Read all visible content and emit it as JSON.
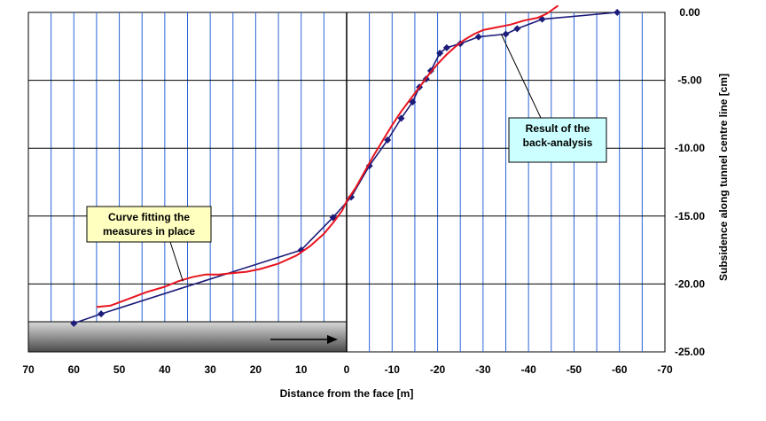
{
  "chart_data": {
    "type": "line",
    "title": "",
    "xlabel": "Distance from the face [m]",
    "ylabel": "Subsidence along tunnel centre line [cm]",
    "xlim": [
      70,
      -70
    ],
    "ylim": [
      -25,
      0
    ],
    "x_ticks": [
      70,
      60,
      50,
      40,
      30,
      20,
      10,
      0,
      -10,
      -20,
      -30,
      -40,
      -50,
      -60,
      -70
    ],
    "y_ticks": [
      0,
      -5,
      -10,
      -15,
      -20,
      -25
    ],
    "x_tick_labels": [
      "70",
      "60",
      "50",
      "40",
      "30",
      "20",
      "10",
      "0",
      "-10",
      "-20",
      "-30",
      "-40",
      "-50",
      "-60",
      "-70"
    ],
    "y_tick_labels": [
      "0.00",
      "-5.00",
      "-10.00",
      "-15.00",
      "-20.00",
      "-25.00"
    ],
    "grid": true,
    "series": [
      {
        "name": "Result of the back-analysis",
        "color": "#1c1c7a",
        "marker": "diamond",
        "x": [
          60,
          54,
          10,
          3,
          -1,
          -5,
          -9,
          -12,
          -14.5,
          -16,
          -17.5,
          -18.5,
          -20.5,
          -22,
          -25,
          -29,
          -35,
          -37.5,
          -43,
          -59.5
        ],
        "y": [
          -22.9,
          -22.2,
          -17.5,
          -15.1,
          -13.6,
          -11.3,
          -9.4,
          -7.8,
          -6.6,
          -5.5,
          -4.9,
          -4.3,
          -3.0,
          -2.6,
          -2.3,
          -1.8,
          -1.6,
          -1.2,
          -0.5,
          0.0
        ]
      },
      {
        "name": "Curve fitting the measures in place",
        "color": "#e8141e",
        "marker": "none",
        "x": [
          55,
          52,
          48,
          44,
          40,
          37,
          34,
          31,
          28,
          25,
          22,
          19,
          15,
          11,
          8,
          5,
          3,
          1,
          0,
          -2,
          -4,
          -6,
          -8,
          -10,
          -12,
          -14,
          -16,
          -18,
          -20,
          -22,
          -24,
          -26,
          -28,
          -30,
          -33,
          -36,
          -39,
          -42,
          -44,
          -46.5
        ],
        "y": [
          -21.7,
          -21.6,
          -21.1,
          -20.6,
          -20.2,
          -19.8,
          -19.5,
          -19.3,
          -19.3,
          -19.2,
          -19.1,
          -18.9,
          -18.5,
          -17.9,
          -17.2,
          -16.3,
          -15.5,
          -14.6,
          -13.9,
          -12.9,
          -11.7,
          -10.5,
          -9.4,
          -8.3,
          -7.3,
          -6.4,
          -5.5,
          -4.6,
          -3.8,
          -3.1,
          -2.5,
          -2.0,
          -1.6,
          -1.3,
          -1.1,
          -0.9,
          -0.6,
          -0.4,
          -0.1,
          0.5
        ]
      }
    ],
    "annotations": [
      {
        "text_lines": [
          "Curve fitting the",
          "measures in place"
        ],
        "points_to": [
          36,
          -19.8
        ],
        "fill": "#ffffc0"
      },
      {
        "text_lines": [
          "Result of the",
          "back-analysis"
        ],
        "points_to": [
          -34,
          -1.6
        ],
        "fill": "#ccffff"
      }
    ]
  }
}
